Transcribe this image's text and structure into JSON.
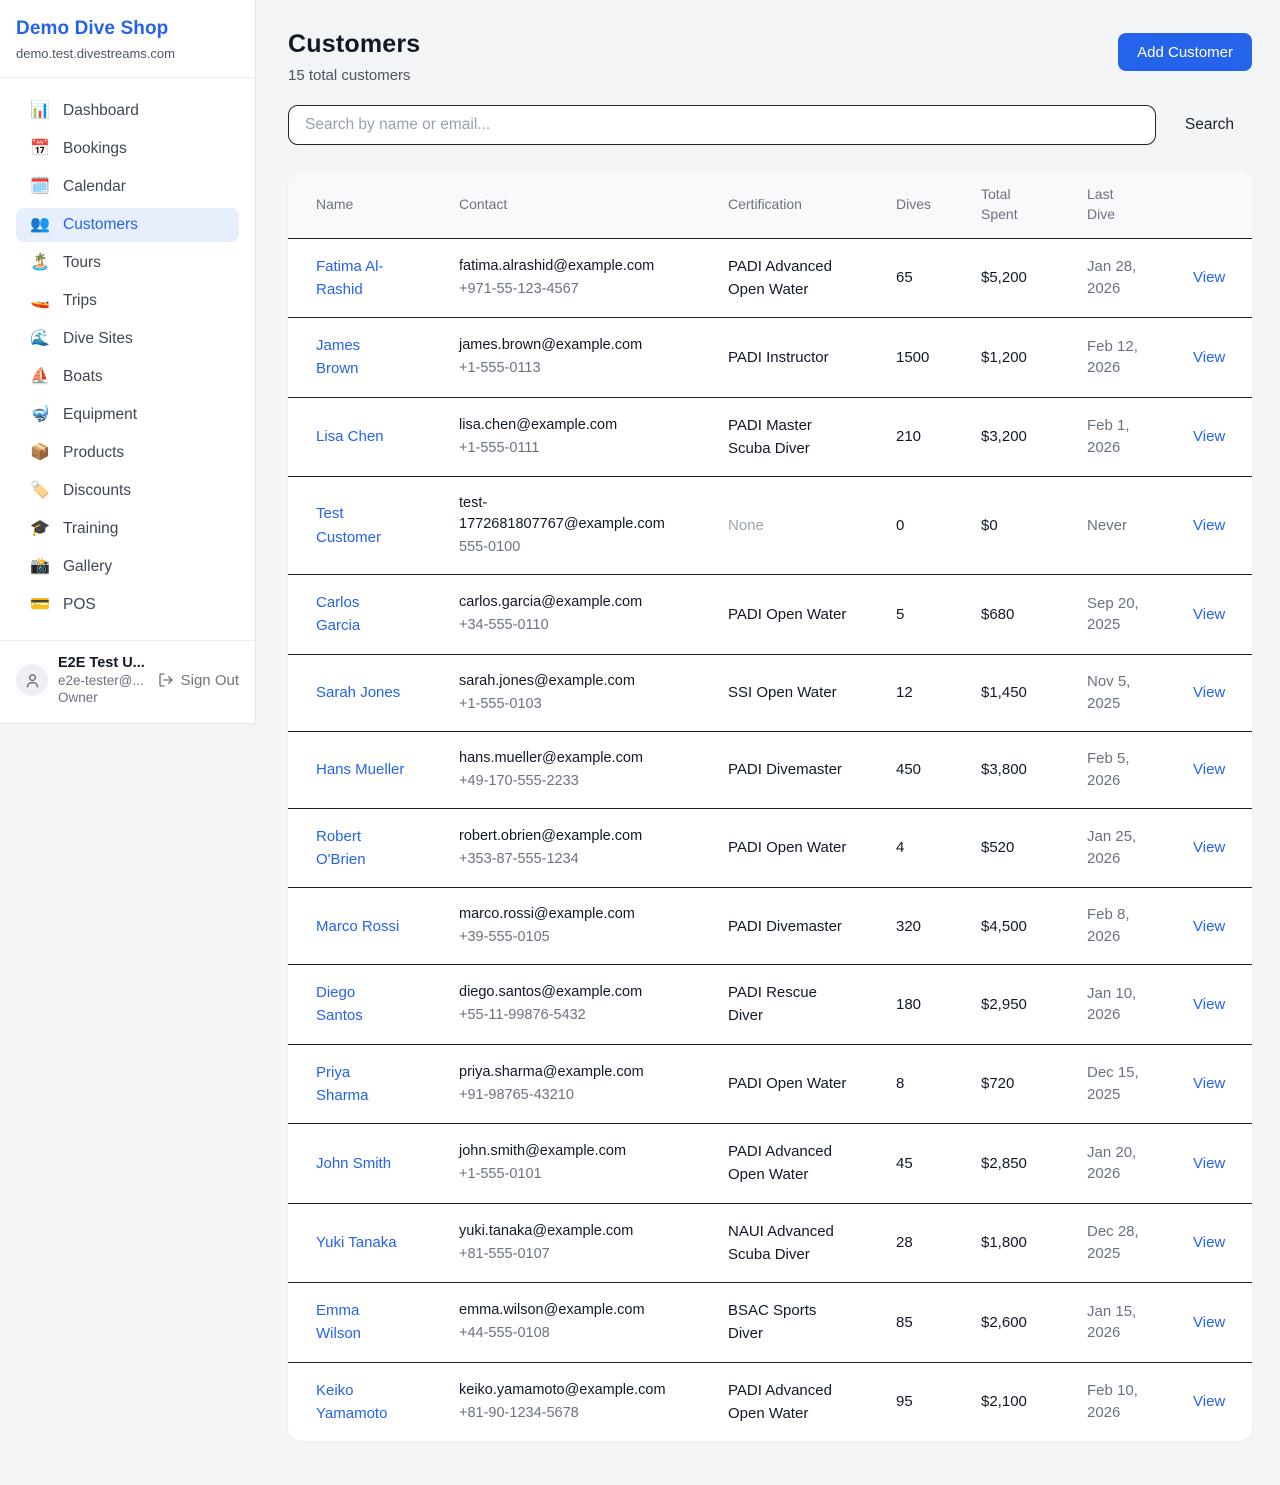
{
  "sidebar": {
    "brand": {
      "name": "Demo Dive Shop",
      "domain": "demo.test.divestreams.com"
    },
    "nav": [
      {
        "id": "dashboard",
        "icon": "📊",
        "label": "Dashboard",
        "active": false
      },
      {
        "id": "bookings",
        "icon": "📅",
        "label": "Bookings",
        "active": false
      },
      {
        "id": "calendar",
        "icon": "🗓️",
        "label": "Calendar",
        "active": false
      },
      {
        "id": "customers",
        "icon": "👥",
        "label": "Customers",
        "active": true
      },
      {
        "id": "tours",
        "icon": "🏝️",
        "label": "Tours",
        "active": false
      },
      {
        "id": "trips",
        "icon": "🚤",
        "label": "Trips",
        "active": false
      },
      {
        "id": "dive-sites",
        "icon": "🌊",
        "label": "Dive Sites",
        "active": false
      },
      {
        "id": "boats",
        "icon": "⛵",
        "label": "Boats",
        "active": false
      },
      {
        "id": "equipment",
        "icon": "🤿",
        "label": "Equipment",
        "active": false
      },
      {
        "id": "products",
        "icon": "📦",
        "label": "Products",
        "active": false
      },
      {
        "id": "discounts",
        "icon": "🏷️",
        "label": "Discounts",
        "active": false
      },
      {
        "id": "training",
        "icon": "🎓",
        "label": "Training",
        "active": false
      },
      {
        "id": "gallery",
        "icon": "📸",
        "label": "Gallery",
        "active": false
      },
      {
        "id": "pos",
        "icon": "💳",
        "label": "POS",
        "active": false
      }
    ],
    "user": {
      "name": "E2E Test U...",
      "email": "e2e-tester@...",
      "role": "Owner",
      "sign_out_label": "Sign Out"
    }
  },
  "header": {
    "title": "Customers",
    "subtitle": "15 total customers",
    "add_button_label": "Add Customer"
  },
  "search": {
    "placeholder": "Search by name or email...",
    "button_label": "Search"
  },
  "table": {
    "columns": [
      "Name",
      "Contact",
      "Certification",
      "Dives",
      "Total Spent",
      "Last Dive",
      ""
    ],
    "view_label": "View",
    "rows": [
      {
        "name": "Fatima Al-Rashid",
        "email": "fatima.alrashid@example.com",
        "phone": "+971-55-123-4567",
        "certification": "PADI Advanced Open Water",
        "dives": "65",
        "total_spent": "$5,200",
        "last_dive": "Jan 28, 2026"
      },
      {
        "name": "James Brown",
        "email": "james.brown@example.com",
        "phone": "+1-555-0113",
        "certification": "PADI Instructor",
        "dives": "1500",
        "total_spent": "$1,200",
        "last_dive": "Feb 12, 2026"
      },
      {
        "name": "Lisa Chen",
        "email": "lisa.chen@example.com",
        "phone": "+1-555-0111",
        "certification": "PADI Master Scuba Diver",
        "dives": "210",
        "total_spent": "$3,200",
        "last_dive": "Feb 1, 2026"
      },
      {
        "name": "Test Customer",
        "email": "test-1772681807767@example.com",
        "phone": "555-0100",
        "certification": "None",
        "dives": "0",
        "total_spent": "$0",
        "last_dive": "Never"
      },
      {
        "name": "Carlos Garcia",
        "email": "carlos.garcia@example.com",
        "phone": "+34-555-0110",
        "certification": "PADI Open Water",
        "dives": "5",
        "total_spent": "$680",
        "last_dive": "Sep 20, 2025"
      },
      {
        "name": "Sarah Jones",
        "email": "sarah.jones@example.com",
        "phone": "+1-555-0103",
        "certification": "SSI Open Water",
        "dives": "12",
        "total_spent": "$1,450",
        "last_dive": "Nov 5, 2025"
      },
      {
        "name": "Hans Mueller",
        "email": "hans.mueller@example.com",
        "phone": "+49-170-555-2233",
        "certification": "PADI Divemaster",
        "dives": "450",
        "total_spent": "$3,800",
        "last_dive": "Feb 5, 2026"
      },
      {
        "name": "Robert O'Brien",
        "email": "robert.obrien@example.com",
        "phone": "+353-87-555-1234",
        "certification": "PADI Open Water",
        "dives": "4",
        "total_spent": "$520",
        "last_dive": "Jan 25, 2026"
      },
      {
        "name": "Marco Rossi",
        "email": "marco.rossi@example.com",
        "phone": "+39-555-0105",
        "certification": "PADI Divemaster",
        "dives": "320",
        "total_spent": "$4,500",
        "last_dive": "Feb 8, 2026"
      },
      {
        "name": "Diego Santos",
        "email": "diego.santos@example.com",
        "phone": "+55-11-99876-5432",
        "certification": "PADI Rescue Diver",
        "dives": "180",
        "total_spent": "$2,950",
        "last_dive": "Jan 10, 2026"
      },
      {
        "name": "Priya Sharma",
        "email": "priya.sharma@example.com",
        "phone": "+91-98765-43210",
        "certification": "PADI Open Water",
        "dives": "8",
        "total_spent": "$720",
        "last_dive": "Dec 15, 2025"
      },
      {
        "name": "John Smith",
        "email": "john.smith@example.com",
        "phone": "+1-555-0101",
        "certification": "PADI Advanced Open Water",
        "dives": "45",
        "total_spent": "$2,850",
        "last_dive": "Jan 20, 2026"
      },
      {
        "name": "Yuki Tanaka",
        "email": "yuki.tanaka@example.com",
        "phone": "+81-555-0107",
        "certification": "NAUI Advanced Scuba Diver",
        "dives": "28",
        "total_spent": "$1,800",
        "last_dive": "Dec 28, 2025"
      },
      {
        "name": "Emma Wilson",
        "email": "emma.wilson@example.com",
        "phone": "+44-555-0108",
        "certification": "BSAC Sports Diver",
        "dives": "85",
        "total_spent": "$2,600",
        "last_dive": "Jan 15, 2026"
      },
      {
        "name": "Keiko Yamamoto",
        "email": "keiko.yamamoto@example.com",
        "phone": "+81-90-1234-5678",
        "certification": "PADI Advanced Open Water",
        "dives": "95",
        "total_spent": "$2,100",
        "last_dive": "Feb 10, 2026"
      }
    ]
  },
  "colors": {
    "accent": "#2563eb",
    "active_nav_bg": "#e7effc",
    "row_divider": "#18202e",
    "muted_text": "#6b7280"
  }
}
